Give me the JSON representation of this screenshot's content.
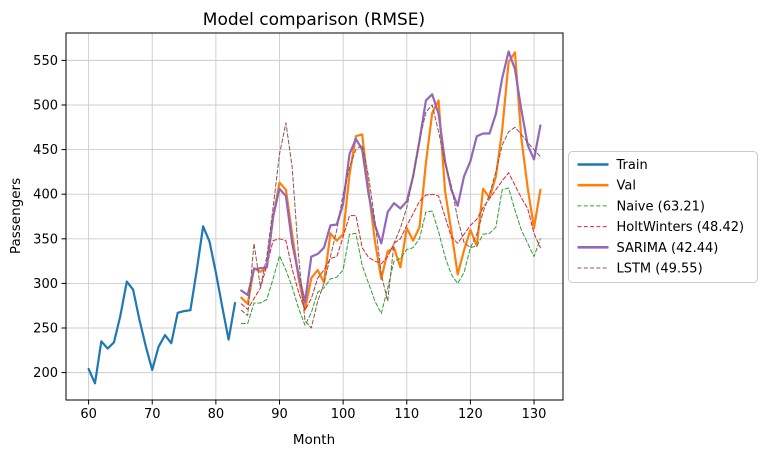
{
  "chart_data": {
    "type": "line",
    "title": "Model comparison (RMSE)",
    "xlabel": "Month",
    "ylabel": "Passengers",
    "xlim": [
      56.45,
      134.55
    ],
    "ylim": [
      169.3,
      580.7
    ],
    "xticks": [
      60,
      70,
      80,
      90,
      100,
      110,
      120,
      130
    ],
    "yticks": [
      200,
      250,
      300,
      350,
      400,
      450,
      500,
      550
    ],
    "grid": true,
    "grid_color": "#cccccc",
    "spine_color": "#000000",
    "background": "#ffffff",
    "legend": {
      "position": "center right",
      "border_color": "#cccccc",
      "background": "#ffffff"
    },
    "series": [
      {
        "name": "Train",
        "legend_label": "Train",
        "color": "#1f77b4",
        "linestyle": "solid",
        "linewidth": 2.2,
        "x_start": 60,
        "x_step": 1,
        "values": [
          204,
          188,
          235,
          227,
          234,
          264,
          302,
          293,
          259,
          229,
          203,
          229,
          242,
          233,
          267,
          269,
          270,
          315,
          364,
          347,
          312,
          274,
          237,
          278
        ]
      },
      {
        "name": "Val",
        "legend_label": "Val",
        "color": "#ff7f0e",
        "linestyle": "solid",
        "linewidth": 2.2,
        "x_start": 84,
        "x_step": 1,
        "values": [
          284,
          277,
          317,
          313,
          318,
          374,
          413,
          405,
          355,
          306,
          271,
          306,
          315,
          301,
          356,
          348,
          355,
          422,
          465,
          467,
          404,
          347,
          305,
          336,
          340,
          318,
          362,
          348,
          363,
          435,
          491,
          505,
          404,
          359,
          310,
          337,
          360,
          342,
          406,
          396,
          420,
          472,
          548,
          559,
          463,
          407,
          362,
          405
        ]
      },
      {
        "name": "Naive",
        "legend_label": "Naive (63.21)",
        "rmse": 63.21,
        "color": "#2ca02c",
        "linestyle": "dashed",
        "linewidth": 1,
        "x_start": 84,
        "x_step": 1,
        "values": [
          255,
          255,
          278,
          278,
          282,
          305,
          331,
          315,
          296,
          272,
          253,
          267,
          290,
          295,
          305,
          307,
          315,
          355,
          356,
          320,
          300,
          280,
          266,
          295,
          325,
          328,
          338,
          340,
          350,
          380,
          381,
          358,
          330,
          310,
          300,
          312,
          340,
          342,
          355,
          356,
          363,
          405,
          407,
          382,
          360,
          345,
          330,
          350
        ]
      },
      {
        "name": "HoltWinters",
        "legend_label": "HoltWinters (48.42)",
        "rmse": 48.42,
        "color": "#d62728",
        "linestyle": "dashed",
        "linewidth": 1,
        "x_start": 84,
        "x_step": 1,
        "values": [
          277,
          271,
          283,
          295,
          320,
          348,
          350,
          348,
          316,
          290,
          270,
          283,
          306,
          315,
          328,
          330,
          352,
          376,
          376,
          340,
          329,
          325,
          322,
          330,
          345,
          350,
          365,
          378,
          392,
          399,
          400,
          398,
          375,
          352,
          345,
          355,
          365,
          372,
          385,
          395,
          405,
          415,
          424,
          410,
          396,
          384,
          356,
          340
        ]
      },
      {
        "name": "SARIMA",
        "legend_label": "SARIMA (42.44)",
        "rmse": 42.44,
        "color": "#9467bd",
        "linestyle": "solid",
        "linewidth": 2.2,
        "x_start": 84,
        "x_step": 1,
        "values": [
          292,
          287,
          316,
          317,
          318,
          375,
          406,
          398,
          345,
          310,
          279,
          330,
          333,
          340,
          365,
          366,
          389,
          445,
          462,
          450,
          400,
          365,
          345,
          380,
          390,
          384,
          392,
          420,
          460,
          505,
          512,
          490,
          437,
          405,
          387,
          420,
          437,
          465,
          468,
          468,
          490,
          530,
          560,
          540,
          495,
          455,
          439,
          477
        ]
      },
      {
        "name": "LSTM",
        "legend_label": "LSTM (49.55)",
        "rmse": 49.55,
        "color": "#8c564b",
        "linestyle": "dashed",
        "linewidth": 1,
        "x_start": 84,
        "x_step": 1,
        "values": [
          270,
          264,
          345,
          296,
          330,
          385,
          445,
          480,
          430,
          330,
          258,
          250,
          280,
          300,
          330,
          360,
          400,
          430,
          450,
          455,
          420,
          370,
          310,
          280,
          345,
          362,
          385,
          420,
          460,
          492,
          500,
          470,
          435,
          410,
          372,
          346,
          340,
          355,
          380,
          400,
          425,
          455,
          470,
          475,
          467,
          458,
          450,
          442
        ]
      }
    ]
  }
}
